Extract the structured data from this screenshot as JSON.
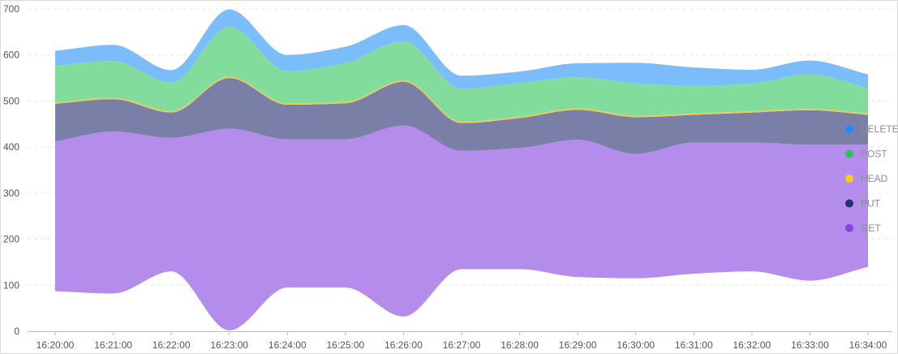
{
  "chart_data": {
    "type": "area",
    "stacked": true,
    "smooth": true,
    "streamgraph": true,
    "x": [
      "16:20:00",
      "16:21:00",
      "16:22:00",
      "16:23:00",
      "16:24:00",
      "16:25:00",
      "16:26:00",
      "16:27:00",
      "16:28:00",
      "16:29:00",
      "16:30:00",
      "16:31:00",
      "16:32:00",
      "16:33:00",
      "16:34:00"
    ],
    "baseline": [
      87,
      82,
      130,
      2,
      95,
      95,
      32,
      135,
      135,
      118,
      115,
      125,
      130,
      110,
      140
    ],
    "series": [
      {
        "name": "GET",
        "color": "#b48cec",
        "values": [
          325,
          352,
          290,
          438,
          322,
          322,
          415,
          257,
          263,
          298,
          270,
          285,
          280,
          295,
          265
        ]
      },
      {
        "name": "PUT",
        "color": "#7a7fa8",
        "values": [
          82,
          70,
          55,
          110,
          75,
          78,
          95,
          60,
          65,
          65,
          80,
          60,
          65,
          75,
          65
        ]
      },
      {
        "name": "HEAD",
        "color": "#f2c94c",
        "values": [
          3,
          3,
          3,
          3,
          3,
          3,
          3,
          3,
          3,
          3,
          3,
          3,
          3,
          3,
          3
        ]
      },
      {
        "name": "POST",
        "color": "#82dc9c",
        "values": [
          80,
          80,
          62,
          108,
          70,
          85,
          85,
          72,
          73,
          68,
          70,
          60,
          60,
          75,
          55
        ]
      },
      {
        "name": "DELETE",
        "color": "#7bbcfb",
        "values": [
          32,
          35,
          27,
          38,
          35,
          35,
          35,
          28,
          25,
          30,
          45,
          40,
          30,
          30,
          30
        ]
      }
    ],
    "ylim": [
      0,
      700
    ],
    "yticks": [
      "0",
      "100",
      "200",
      "300",
      "400",
      "500",
      "600",
      "700"
    ],
    "grid": true,
    "legend": {
      "placement": "right",
      "entries": [
        {
          "name": "DELETE",
          "color": "#1890ff"
        },
        {
          "name": "POST",
          "color": "#2fc25b"
        },
        {
          "name": "HEAD",
          "color": "#facc14"
        },
        {
          "name": "PUT",
          "color": "#223273"
        },
        {
          "name": "GET",
          "color": "#8543e0"
        }
      ]
    }
  }
}
